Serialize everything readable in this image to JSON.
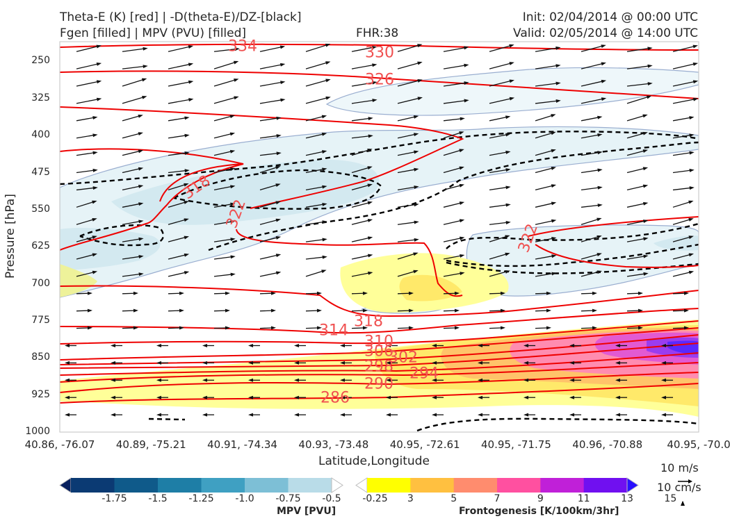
{
  "header": {
    "title_line1": "Theta-E (K) [red] | -D(theta-E)/DZ-[black]",
    "title_line2": "Fgen [filled] | MPV (PVU) [filled]",
    "fhr": "FHR:38",
    "init": "Init: 02/04/2014 @ 00:00 UTC",
    "valid": "Valid: 02/05/2014 @ 14:00 UTC"
  },
  "chart_data": {
    "type": "cross-section",
    "xlabel": "Latitude,Longitude",
    "ylabel": "Pressure [hPa]",
    "x_ticks": [
      "40.86, -76.07",
      "40.89, -75.21",
      "40.91, -74.34",
      "40.93, -73.48",
      "40.95, -72.61",
      "40.95, -71.75",
      "40.96, -70.88",
      "40.95, -70.0"
    ],
    "y_ticks": [
      250,
      325,
      400,
      475,
      550,
      625,
      700,
      775,
      850,
      925,
      1000
    ],
    "ylim": [
      1000,
      210
    ],
    "y_scale": "inverted pressure",
    "theta_e_contour_labels": [
      "334",
      "330",
      "326",
      "318",
      "322",
      "322",
      "318",
      "314",
      "310",
      "306",
      "302",
      "298",
      "294",
      "290",
      "286"
    ],
    "theta_e_color": "#ee0000",
    "ddz_color": "#000000",
    "mpv_colorbar": {
      "title": "MPV [PVU]",
      "labels": [
        "-1.75",
        "-1.5",
        "-1.25",
        "-1.0",
        "-0.75",
        "-0.5",
        "-0.25"
      ],
      "colors": [
        "#08205e",
        "#0b3a73",
        "#0f5a8a",
        "#1e7ea6",
        "#3fa0c2",
        "#7dbfd6",
        "#b9dce8",
        "#ffffff"
      ]
    },
    "fgen_colorbar": {
      "title": "Frontogenesis [K/100km/3hr]",
      "labels": [
        "3",
        "5",
        "7",
        "9",
        "11",
        "13",
        "15"
      ],
      "colors": [
        "#ffffff",
        "#ffff00",
        "#ffc040",
        "#ff8c6e",
        "#ff50a0",
        "#c020d8",
        "#7010f0",
        "#2810ff"
      ]
    },
    "reference_vectors": [
      "10 m/s",
      "10 cm/s"
    ]
  }
}
